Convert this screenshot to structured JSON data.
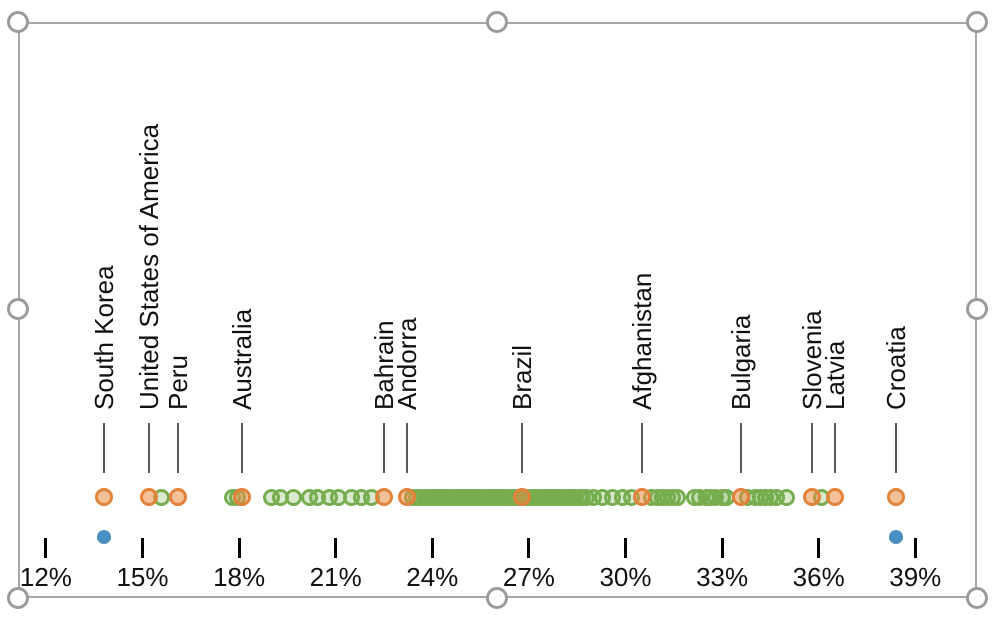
{
  "object_frame": {
    "type": "selected-chart-object",
    "frame_color": "#a6a6a6",
    "handle_count": 8
  },
  "colors": {
    "green_ring": "#76ae4f",
    "green_fill": "rgba(118,174,79,0.28)",
    "orange_ring": "#e2813a",
    "orange_fill": "rgba(236,138,68,0.55)",
    "blue": "#4a8fc4",
    "leader_line": "#595959",
    "axis_tick": "#000000",
    "axis_text": "#111111"
  },
  "chart_data": {
    "type": "scatter",
    "subtype": "horizontal-strip-plot",
    "title": "",
    "xlabel": "",
    "ylabel": "",
    "grid": false,
    "legend": false,
    "x_axis": {
      "min": 12,
      "max": 39,
      "tick_step": 3,
      "unit": "%",
      "ticks": [
        {
          "value": 12,
          "label": "12%"
        },
        {
          "value": 15,
          "label": "15%"
        },
        {
          "value": 18,
          "label": "18%"
        },
        {
          "value": 21,
          "label": "21%"
        },
        {
          "value": 24,
          "label": "24%"
        },
        {
          "value": 27,
          "label": "27%"
        },
        {
          "value": 30,
          "label": "30%"
        },
        {
          "value": 33,
          "label": "33%"
        },
        {
          "value": 36,
          "label": "36%"
        },
        {
          "value": 39,
          "label": "39%"
        }
      ]
    },
    "series": [
      {
        "name": "green_dots_unlabeled",
        "marker": "open-circle",
        "values": [
          15.6,
          17.8,
          17.95,
          19.0,
          19.3,
          19.7,
          20.2,
          20.45,
          20.8,
          21.1,
          21.5,
          21.8,
          22.1,
          23.4,
          23.52,
          23.64,
          23.76,
          23.88,
          24.0,
          24.12,
          24.24,
          24.36,
          24.48,
          24.6,
          24.72,
          24.84,
          24.96,
          25.08,
          25.2,
          25.32,
          25.44,
          25.56,
          25.68,
          25.8,
          25.92,
          26.04,
          26.16,
          26.28,
          26.4,
          26.52,
          26.64,
          26.76,
          26.88,
          27.0,
          27.12,
          27.24,
          27.36,
          27.48,
          27.6,
          27.72,
          27.84,
          27.96,
          28.08,
          28.2,
          28.32,
          28.44,
          28.56,
          28.68,
          28.8,
          29.0,
          29.3,
          29.6,
          29.9,
          30.2,
          30.8,
          31.0,
          31.15,
          31.3,
          31.45,
          31.6,
          32.15,
          32.3,
          32.5,
          32.65,
          32.8,
          33.0,
          33.15,
          33.8,
          34.05,
          34.2,
          34.35,
          34.5,
          34.7,
          35.0,
          36.1
        ]
      },
      {
        "name": "orange_labeled_points",
        "marker": "open-circle",
        "points": [
          {
            "label": "South Korea",
            "value": 13.8
          },
          {
            "label": "United States of America",
            "value": 15.2
          },
          {
            "label": "Peru",
            "value": 16.1
          },
          {
            "label": "Australia",
            "value": 18.1
          },
          {
            "label": "Bahrain",
            "value": 22.5
          },
          {
            "label": "Andorra",
            "value": 23.2
          },
          {
            "label": "Brazil",
            "value": 26.8
          },
          {
            "label": "Afghanistan",
            "value": 30.5
          },
          {
            "label": "Bulgaria",
            "value": 33.6
          },
          {
            "label": "Slovenia",
            "value": 35.8
          },
          {
            "label": "Latvia",
            "value": 36.5
          },
          {
            "label": "Croatia",
            "value": 38.4
          }
        ]
      },
      {
        "name": "blue_extreme_dots",
        "marker": "filled-dot",
        "values": [
          13.8,
          38.4
        ]
      }
    ]
  }
}
